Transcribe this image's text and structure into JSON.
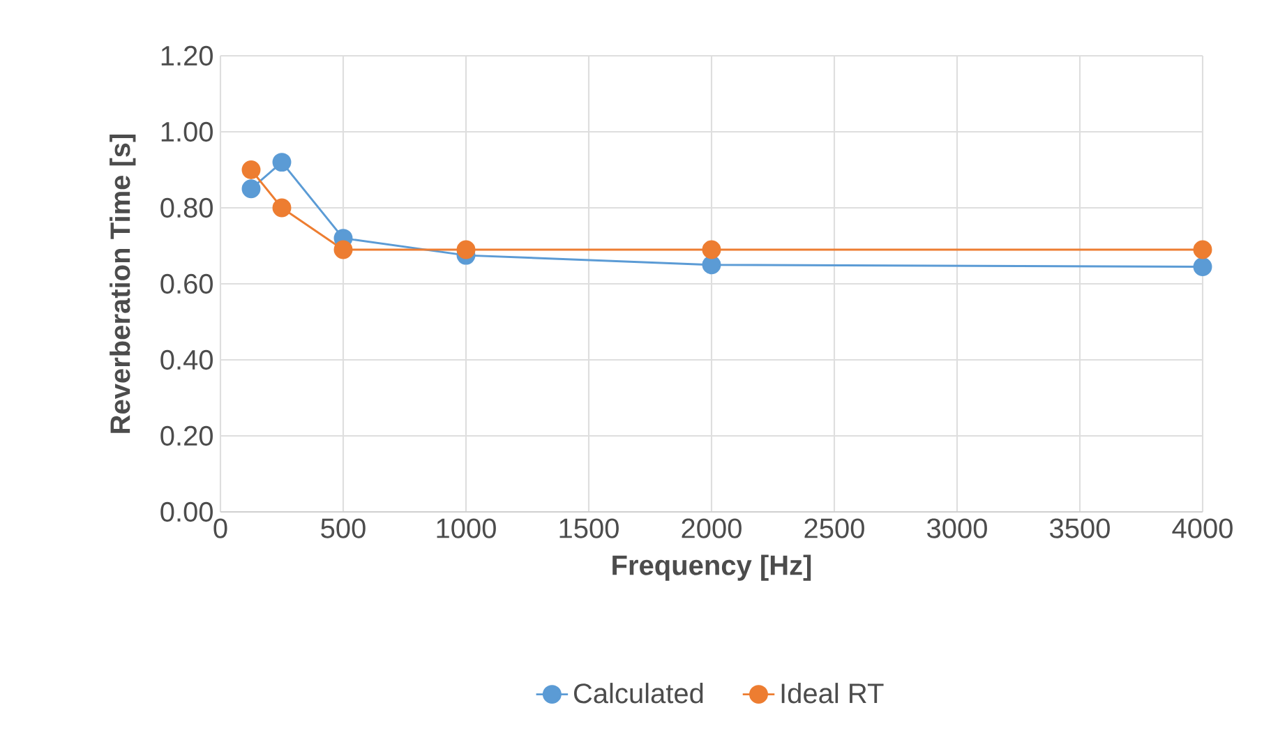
{
  "chart_data": {
    "type": "line",
    "xlabel": "Frequency [Hz]",
    "ylabel": "Reverberation Time [s]",
    "x": [
      125,
      250,
      500,
      1000,
      2000,
      4000
    ],
    "series": [
      {
        "name": "Calculated",
        "color": "#5b9bd5",
        "values": [
          0.85,
          0.92,
          0.72,
          0.675,
          0.65,
          0.645
        ]
      },
      {
        "name": "Ideal RT",
        "color": "#ed7d31",
        "values": [
          0.9,
          0.8,
          0.69,
          0.69,
          0.69,
          0.69
        ]
      }
    ],
    "xlim": [
      0,
      4000
    ],
    "xticks": [
      0,
      500,
      1000,
      1500,
      2000,
      2500,
      3000,
      3500,
      4000
    ],
    "ylim": [
      0,
      1.2
    ],
    "yticks": [
      {
        "value": 0,
        "label": "0.00"
      },
      {
        "value": 0.2,
        "label": "0.20"
      },
      {
        "value": 0.4,
        "label": "0.40"
      },
      {
        "value": 0.6,
        "label": "0.60"
      },
      {
        "value": 0.8,
        "label": "0.80"
      },
      {
        "value": 1.0,
        "label": "1.00"
      },
      {
        "value": 1.2,
        "label": "1.20"
      }
    ],
    "grid": true,
    "legend": "bottom",
    "marker": "circle",
    "line_style": "solid"
  }
}
